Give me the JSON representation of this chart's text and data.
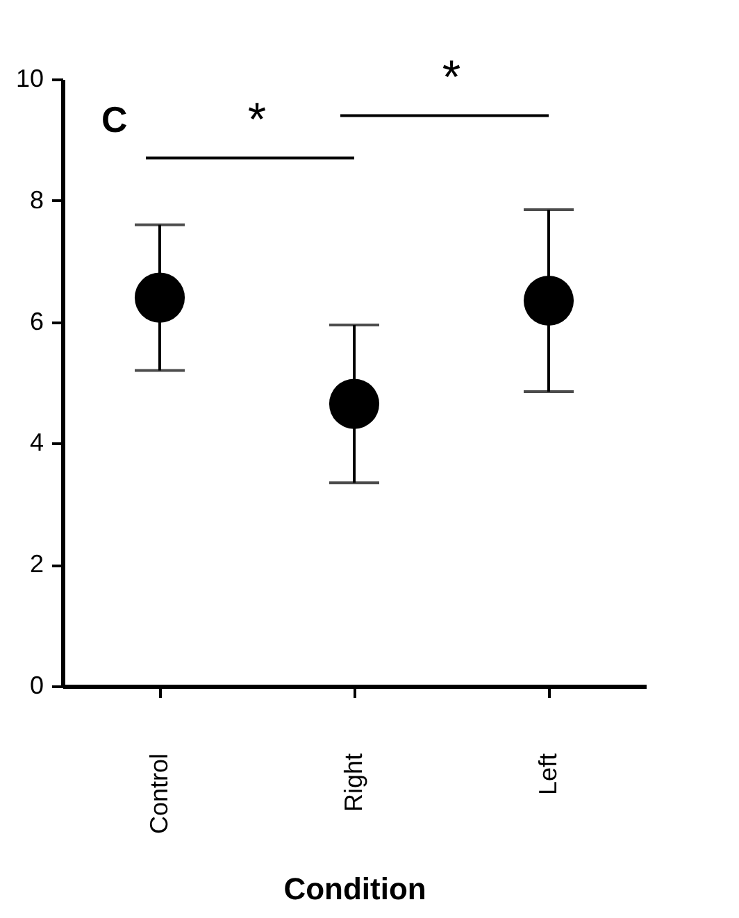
{
  "chart_data": {
    "type": "scatter",
    "xlabel": "Condition",
    "categories": [
      "Control",
      "Right",
      "Left"
    ],
    "values": [
      6.4,
      4.65,
      6.35
    ],
    "errors": [
      1.2,
      1.3,
      1.5
    ],
    "color": "#000000",
    "marker": "circle",
    "ylim": [
      0,
      10
    ],
    "yticks": [
      0,
      2,
      4,
      6,
      8,
      10
    ],
    "grid": false,
    "annotations": [
      "C",
      "*",
      "*"
    ]
  }
}
